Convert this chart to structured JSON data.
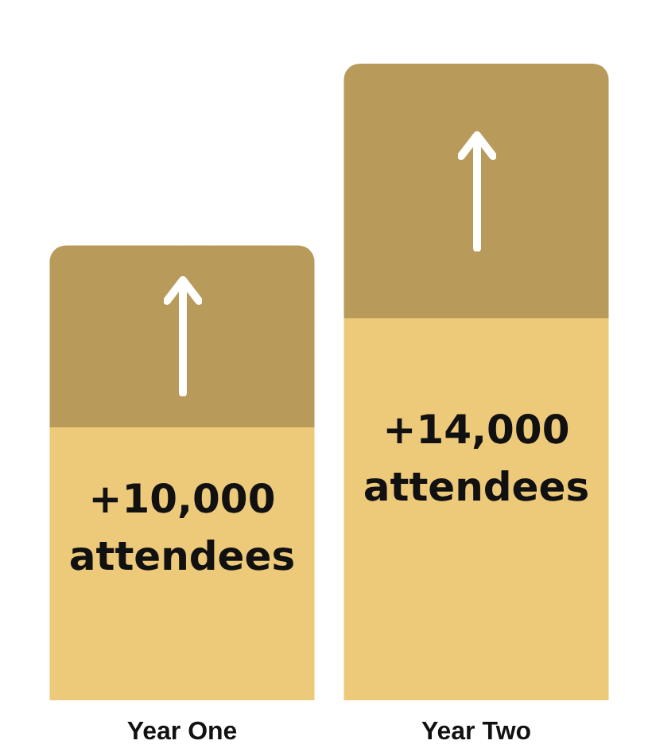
{
  "chart_data": {
    "type": "bar",
    "categories": [
      "Year One",
      "Year Two"
    ],
    "values": [
      10000,
      14000
    ],
    "colors": [
      "#edc97a",
      "#edc97a"
    ],
    "value_labels": [
      "+10,000\nattendees",
      "+14,000\nattendees"
    ]
  }
}
